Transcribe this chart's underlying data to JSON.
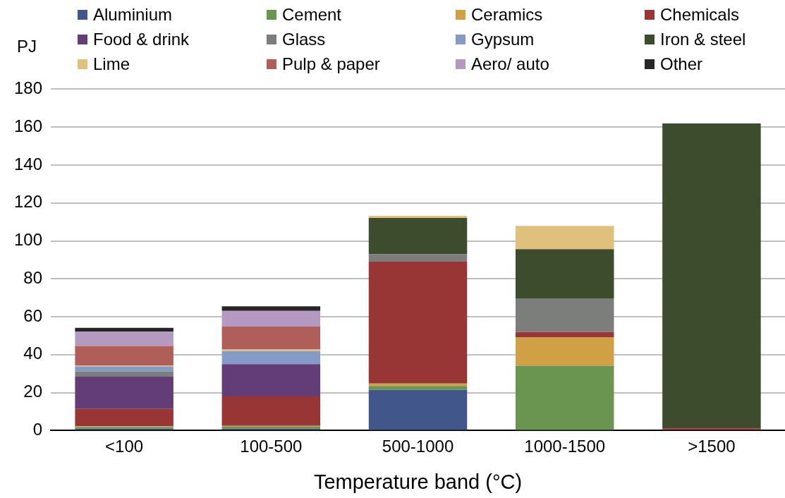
{
  "chart_data": {
    "type": "bar",
    "stacked": true,
    "ylabel": "PJ",
    "xlabel": "Temperature band (°C)",
    "categories": [
      "<100",
      "100-500",
      "500-1000",
      "1000-1500",
      ">1500"
    ],
    "ylim": [
      0,
      180
    ],
    "yticks": [
      0,
      20,
      40,
      60,
      80,
      100,
      120,
      140,
      160,
      180
    ],
    "grid": "y",
    "legend": "top",
    "series": [
      {
        "name": "Aluminium",
        "color": "#41568a",
        "values": [
          1.0,
          1.0,
          21.4,
          0,
          0
        ]
      },
      {
        "name": "Cement",
        "color": "#6a9550",
        "values": [
          0.9,
          1.0,
          2.1,
          34.2,
          0
        ]
      },
      {
        "name": "Ceramics",
        "color": "#d0a044",
        "values": [
          0.4,
          0.5,
          1.3,
          14.9,
          0
        ]
      },
      {
        "name": "Chemicals",
        "color": "#983635",
        "values": [
          9.1,
          15.5,
          64.2,
          2.8,
          1.2
        ]
      },
      {
        "name": "Food & drink",
        "color": "#633d77",
        "values": [
          17.0,
          17.0,
          0,
          0,
          0
        ]
      },
      {
        "name": "Glass",
        "color": "#7c7e7c",
        "values": [
          2.7,
          0,
          3.9,
          17.8,
          0
        ]
      },
      {
        "name": "Gypsum",
        "color": "#849bc7",
        "values": [
          2.7,
          6.9,
          0,
          0,
          0
        ]
      },
      {
        "name": "Iron & steel",
        "color": "#3c4c2c",
        "values": [
          0,
          0,
          19.2,
          25.9,
          160.7
        ]
      },
      {
        "name": "Lime",
        "color": "#dfc17d",
        "values": [
          0.6,
          0.8,
          1.1,
          12.3,
          0
        ]
      },
      {
        "name": "Pulp & paper",
        "color": "#b05e5a",
        "values": [
          10.2,
          12.1,
          0,
          0,
          0
        ]
      },
      {
        "name": "Aero/ auto",
        "color": "#b49ac1",
        "values": [
          7.5,
          8.3,
          0,
          0,
          0
        ]
      },
      {
        "name": "Other",
        "color": "#262626",
        "values": [
          2.1,
          2.4,
          0,
          0,
          0
        ]
      }
    ]
  }
}
